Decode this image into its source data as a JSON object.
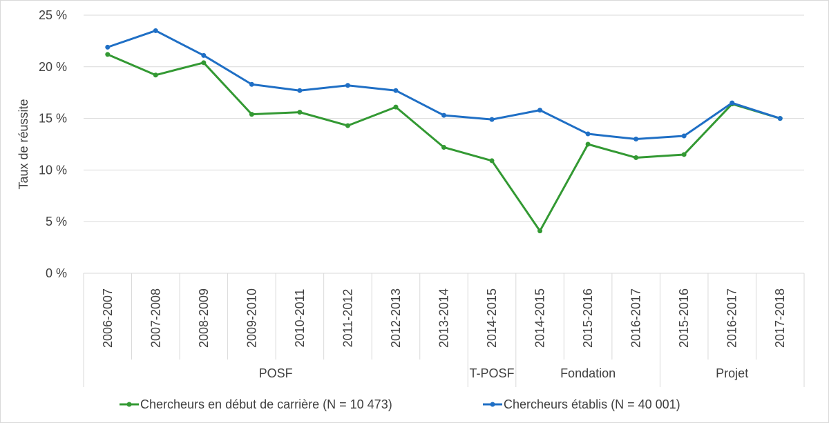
{
  "chart_data": {
    "type": "line",
    "xlabel": "",
    "ylabel": "Taux de réussite",
    "ylim": [
      0,
      25
    ],
    "y_ticks": [
      "0 %",
      "5 %",
      "10 %",
      "15 %",
      "20 %",
      "25 %"
    ],
    "grid": true,
    "legend_position": "bottom",
    "categories": [
      "2006-2007",
      "2007-2008",
      "2008-2009",
      "2009-2010",
      "2010-2011",
      "2011-2012",
      "2012-2013",
      "2013-2014",
      "2014-2015",
      "2014-2015",
      "2015-2016",
      "2016-2017",
      "2015-2016",
      "2016-2017",
      "2017-2018"
    ],
    "groups": [
      {
        "label": "POSF",
        "count": 8
      },
      {
        "label": "T-POSF",
        "count": 1
      },
      {
        "label": "Fondation",
        "count": 3
      },
      {
        "label": "Projet",
        "count": 3
      }
    ],
    "series": [
      {
        "name": "Chercheurs en début de carrière (N = 10 473)",
        "color": "#339933",
        "values": [
          21.2,
          19.2,
          20.4,
          15.4,
          15.6,
          14.3,
          16.1,
          12.2,
          10.9,
          4.1,
          12.5,
          11.2,
          11.5,
          16.4,
          15.0
        ]
      },
      {
        "name": "Chercheurs établis (N = 40 001)",
        "color": "#1f6fc5",
        "values": [
          21.9,
          23.5,
          21.1,
          18.3,
          17.7,
          18.2,
          17.7,
          15.3,
          14.9,
          15.8,
          13.5,
          13.0,
          13.3,
          16.5,
          15.0
        ]
      }
    ]
  }
}
